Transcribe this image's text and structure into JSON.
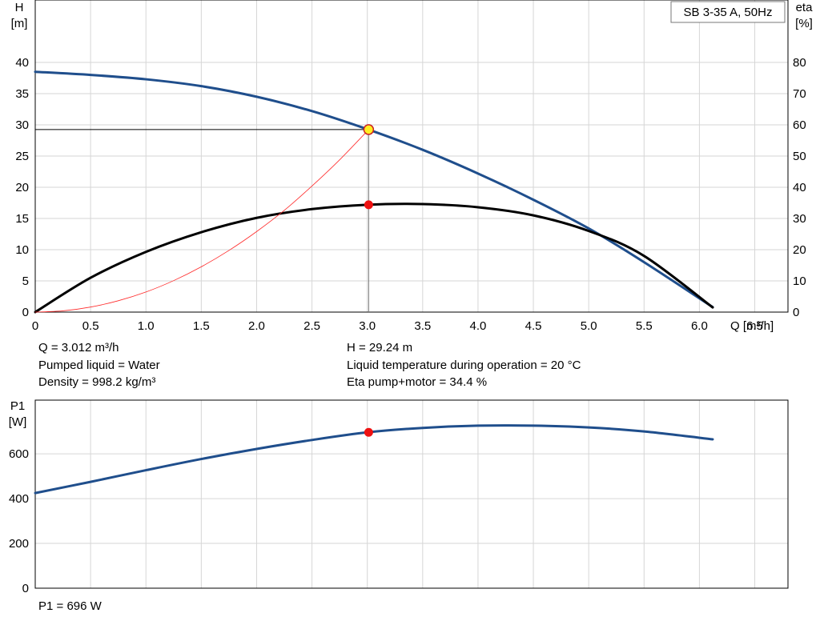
{
  "chart_data": [
    {
      "type": "line",
      "legend_box": "SB 3-35 A, 50Hz",
      "legend_position": "top-right",
      "grid": true,
      "x_axis": {
        "label": "Q [m³/h]",
        "range": [
          0,
          6.8
        ],
        "ticks": [
          "0",
          "0.5",
          "1.0",
          "1.5",
          "2.0",
          "2.5",
          "3.0",
          "3.5",
          "4.0",
          "4.5",
          "5.0",
          "5.5",
          "6.0",
          "6.5"
        ],
        "tick_values": [
          0,
          0.5,
          1.0,
          1.5,
          2.0,
          2.5,
          3.0,
          3.5,
          4.0,
          4.5,
          5.0,
          5.5,
          6.0,
          6.5
        ]
      },
      "y_left": {
        "label_line1": "H",
        "label_line2": "[m]",
        "range": [
          0,
          50
        ],
        "ticks": [
          "0",
          "5",
          "10",
          "15",
          "20",
          "25",
          "30",
          "35",
          "40"
        ],
        "tick_values": [
          0,
          5,
          10,
          15,
          20,
          25,
          30,
          35,
          40
        ]
      },
      "y_right": {
        "label_line1": "eta",
        "label_line2": "[%]",
        "range": [
          0,
          100
        ],
        "ticks": [
          "0",
          "10",
          "20",
          "30",
          "40",
          "50",
          "60",
          "70",
          "80"
        ],
        "tick_values": [
          0,
          10,
          20,
          30,
          40,
          50,
          60,
          70,
          80
        ]
      },
      "series": [
        {
          "axis": "left",
          "color": "#1f4e8c",
          "x": [
            0,
            0.5,
            1.0,
            1.5,
            2.0,
            2.5,
            3.0,
            3.5,
            4.0,
            4.5,
            5.0,
            5.5,
            6.12
          ],
          "y": [
            38.5,
            38.0,
            37.3,
            36.2,
            34.5,
            32.2,
            29.3,
            26.0,
            22.2,
            18.0,
            13.4,
            8.0,
            0.8
          ]
        },
        {
          "axis": "right",
          "color": "#000000",
          "x": [
            0,
            0.5,
            1.0,
            1.5,
            2.0,
            2.5,
            3.0,
            3.5,
            4.0,
            4.5,
            5.0,
            5.5,
            6.12
          ],
          "y": [
            0,
            11.0,
            19.3,
            25.6,
            30.2,
            33.0,
            34.4,
            34.6,
            33.6,
            31.0,
            26.0,
            18.0,
            1.5
          ]
        },
        {
          "axis": "left",
          "color": "#ff2a2a",
          "x": [
            0,
            0.25,
            0.5,
            0.75,
            1.0,
            1.25,
            1.5,
            1.75,
            2.0,
            2.25,
            2.5,
            2.75,
            3.012
          ],
          "y": [
            0,
            0.2,
            0.81,
            1.82,
            3.22,
            5.04,
            7.26,
            9.88,
            12.9,
            16.3,
            20.2,
            24.4,
            29.24
          ]
        }
      ],
      "operating_point": {
        "x": 3.012,
        "h": 29.24,
        "eta": 34.4
      }
    },
    {
      "type": "line",
      "grid": true,
      "x_axis": {
        "range": [
          0,
          6.8
        ],
        "tick_values": [
          0,
          0.5,
          1.0,
          1.5,
          2.0,
          2.5,
          3.0,
          3.5,
          4.0,
          4.5,
          5.0,
          5.5,
          6.0,
          6.5
        ]
      },
      "y_left": {
        "label_line1": "P1",
        "label_line2": "[W]",
        "range": [
          0,
          840
        ],
        "ticks": [
          "0",
          "200",
          "400",
          "600"
        ],
        "tick_values": [
          0,
          200,
          400,
          600
        ]
      },
      "series": [
        {
          "axis": "left",
          "color": "#1f4e8c",
          "x": [
            0,
            0.5,
            1.0,
            1.5,
            2.0,
            2.5,
            3.0,
            3.5,
            4.0,
            4.5,
            5.0,
            5.5,
            6.12
          ],
          "y": [
            425,
            475,
            527,
            577,
            622,
            662,
            696,
            716,
            726,
            726,
            718,
            700,
            665
          ]
        }
      ],
      "operating_point": {
        "x": 3.012,
        "p": 696
      }
    }
  ],
  "info": {
    "q": "Q = 3.012 m³/h",
    "h": "H = 29.24 m",
    "liquid": "Pumped liquid = Water",
    "temp": "Liquid temperature during operation = 20 °C",
    "density": "Density = 998.2 kg/m³",
    "eta": "Eta pump+motor = 34.4 %",
    "p1": "P1 = 696 W"
  }
}
